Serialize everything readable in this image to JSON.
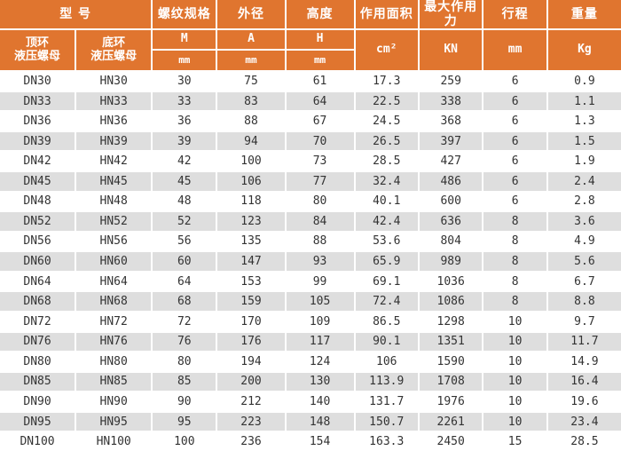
{
  "colors": {
    "header_bg": "#E0752F",
    "header_text": "#FFFFFF",
    "stripe_bg": "#DEDEDE",
    "row_bg": "#FFFFFF",
    "cell_text": "#333333"
  },
  "table": {
    "header": {
      "model_group": "型  号",
      "top_nut": "顶环\n液压螺母",
      "bottom_nut": "底环\n液压螺母",
      "thread_spec": "螺纹规格",
      "outer_diameter": "外径",
      "height": "高度",
      "action_area": "作用面积",
      "max_force": "最大作用力",
      "stroke": "行程",
      "weight": "重量",
      "thread_symbol": "M",
      "diameter_symbol": "A",
      "height_symbol": "H",
      "unit_mm_thread": "mm",
      "unit_mm_diameter": "mm",
      "unit_mm_height": "mm",
      "unit_cm2": "cm²",
      "unit_kn": "KN",
      "unit_mm_stroke": "mm",
      "unit_kg": "Kg"
    },
    "rows": [
      [
        "DN30",
        "HN30",
        "30",
        "75",
        "61",
        "17.3",
        "259",
        "6",
        "0.9"
      ],
      [
        "DN33",
        "HN33",
        "33",
        "83",
        "64",
        "22.5",
        "338",
        "6",
        "1.1"
      ],
      [
        "DN36",
        "HN36",
        "36",
        "88",
        "67",
        "24.5",
        "368",
        "6",
        "1.3"
      ],
      [
        "DN39",
        "HN39",
        "39",
        "94",
        "70",
        "26.5",
        "397",
        "6",
        "1.5"
      ],
      [
        "DN42",
        "HN42",
        "42",
        "100",
        "73",
        "28.5",
        "427",
        "6",
        "1.9"
      ],
      [
        "DN45",
        "HN45",
        "45",
        "106",
        "77",
        "32.4",
        "486",
        "6",
        "2.4"
      ],
      [
        "DN48",
        "HN48",
        "48",
        "118",
        "80",
        "40.1",
        "600",
        "6",
        "2.8"
      ],
      [
        "DN52",
        "HN52",
        "52",
        "123",
        "84",
        "42.4",
        "636",
        "8",
        "3.6"
      ],
      [
        "DN56",
        "HN56",
        "56",
        "135",
        "88",
        "53.6",
        "804",
        "8",
        "4.9"
      ],
      [
        "DN60",
        "HN60",
        "60",
        "147",
        "93",
        "65.9",
        "989",
        "8",
        "5.6"
      ],
      [
        "DN64",
        "HN64",
        "64",
        "153",
        "99",
        "69.1",
        "1036",
        "8",
        "6.7"
      ],
      [
        "DN68",
        "HN68",
        "68",
        "159",
        "105",
        "72.4",
        "1086",
        "8",
        "8.8"
      ],
      [
        "DN72",
        "HN72",
        "72",
        "170",
        "109",
        "86.5",
        "1298",
        "10",
        "9.7"
      ],
      [
        "DN76",
        "HN76",
        "76",
        "176",
        "117",
        "90.1",
        "1351",
        "10",
        "11.7"
      ],
      [
        "DN80",
        "HN80",
        "80",
        "194",
        "124",
        "106",
        "1590",
        "10",
        "14.9"
      ],
      [
        "DN85",
        "HN85",
        "85",
        "200",
        "130",
        "113.9",
        "1708",
        "10",
        "16.4"
      ],
      [
        "DN90",
        "HN90",
        "90",
        "212",
        "140",
        "131.7",
        "1976",
        "10",
        "19.6"
      ],
      [
        "DN95",
        "HN95",
        "95",
        "223",
        "148",
        "150.7",
        "2261",
        "10",
        "23.4"
      ],
      [
        "DN100",
        "HN100",
        "100",
        "236",
        "154",
        "163.3",
        "2450",
        "15",
        "28.5"
      ]
    ]
  }
}
